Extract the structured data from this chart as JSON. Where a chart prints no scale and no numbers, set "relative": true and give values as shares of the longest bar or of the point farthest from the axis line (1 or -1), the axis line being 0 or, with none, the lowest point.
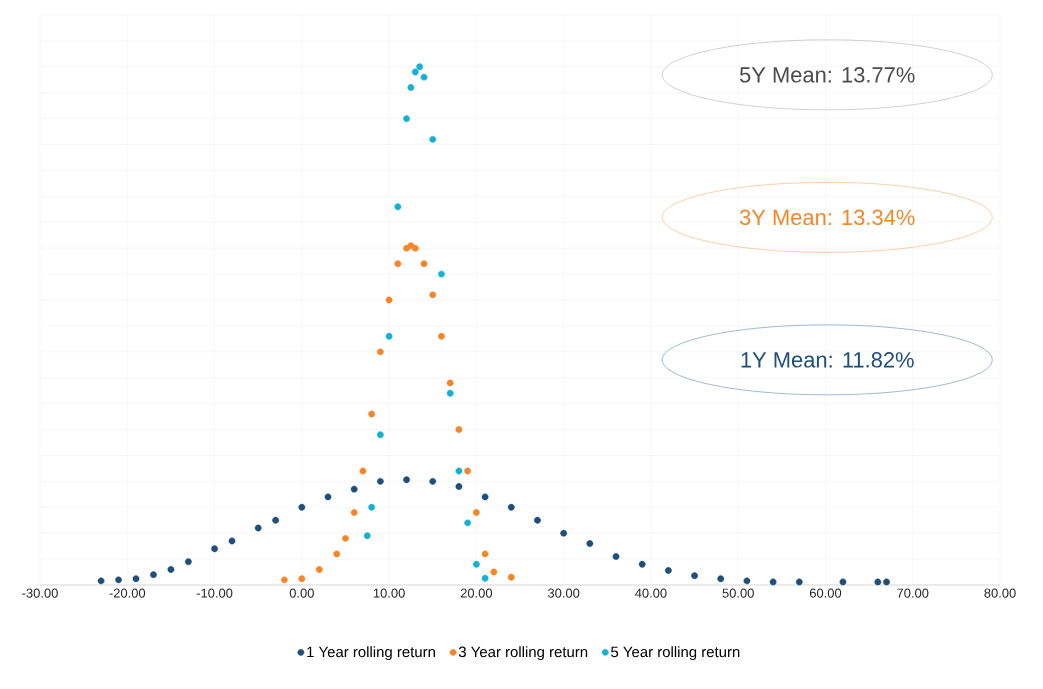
{
  "chart_data": {
    "type": "scatter",
    "relative": true,
    "marker": "circle",
    "grid": true,
    "legend": "bottom",
    "xlim": [
      -30,
      80
    ],
    "xticks": [
      {
        "value": -30,
        "label": "-30.00"
      },
      {
        "value": -20,
        "label": "-20.00"
      },
      {
        "value": -10,
        "label": "-10.00"
      },
      {
        "value": 0,
        "label": "0.00"
      },
      {
        "value": 10,
        "label": "10.00"
      },
      {
        "value": 20,
        "label": "20.00"
      },
      {
        "value": 30,
        "label": "30.00"
      },
      {
        "value": 40,
        "label": "40.00"
      },
      {
        "value": 50,
        "label": "50.00"
      },
      {
        "value": 60,
        "label": "60.00"
      },
      {
        "value": 70,
        "label": "70.00"
      },
      {
        "value": 80,
        "label": "80.00"
      }
    ],
    "annotations": [
      "5Y Mean: 13.77%",
      "3Y Mean: 13.34%",
      "1Y Mean: 11.82%"
    ],
    "series": [
      {
        "name": "1 Year rolling return",
        "color": "#1f4e79",
        "x": [
          -23,
          -21,
          -19,
          -17,
          -15,
          -13,
          -10,
          -8,
          -5,
          -3,
          0,
          3,
          6,
          9,
          12,
          15,
          18,
          21,
          24,
          27,
          30,
          33,
          36,
          39,
          42,
          45,
          48,
          51,
          54,
          57,
          62,
          66,
          67
        ],
        "values": [
          0.008,
          0.01,
          0.012,
          0.02,
          0.03,
          0.045,
          0.07,
          0.085,
          0.11,
          0.125,
          0.15,
          0.17,
          0.185,
          0.2,
          0.203,
          0.2,
          0.19,
          0.17,
          0.15,
          0.125,
          0.1,
          0.08,
          0.055,
          0.04,
          0.028,
          0.018,
          0.012,
          0.008,
          0.006,
          0.006,
          0.006,
          0.006,
          0.006
        ]
      },
      {
        "name": "3 Year rolling return",
        "color": "#f4862a",
        "x": [
          -2,
          0,
          2,
          4,
          5,
          6,
          7,
          8,
          9,
          10,
          11,
          12,
          12.5,
          13,
          14,
          15,
          16,
          17,
          18,
          19,
          20,
          21,
          22,
          24
        ],
        "values": [
          0.01,
          0.012,
          0.03,
          0.06,
          0.09,
          0.14,
          0.22,
          0.33,
          0.45,
          0.55,
          0.62,
          0.65,
          0.655,
          0.65,
          0.62,
          0.56,
          0.48,
          0.39,
          0.3,
          0.22,
          0.14,
          0.06,
          0.025,
          0.015
        ]
      },
      {
        "name": "5 Year rolling return",
        "color": "#17b1cf",
        "x": [
          7.5,
          8,
          9,
          10,
          11,
          12,
          12.5,
          13,
          13.5,
          14,
          15,
          16,
          17,
          18,
          19,
          20,
          21
        ],
        "values": [
          0.095,
          0.15,
          0.29,
          0.48,
          0.73,
          0.9,
          0.96,
          0.99,
          1.0,
          0.98,
          0.86,
          0.6,
          0.37,
          0.22,
          0.12,
          0.04,
          0.013
        ]
      }
    ]
  }
}
